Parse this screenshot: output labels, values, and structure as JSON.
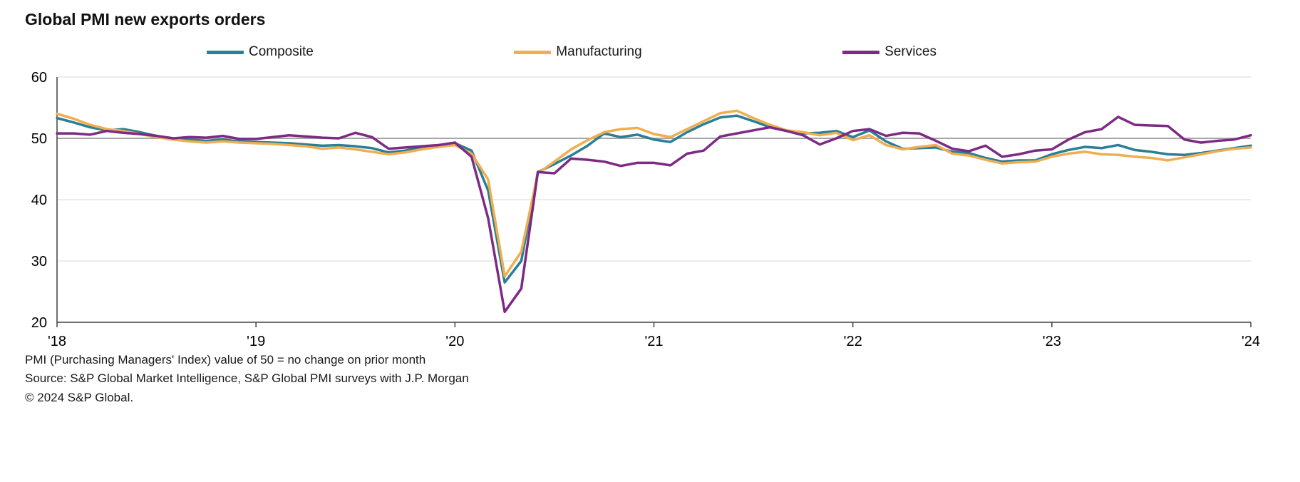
{
  "title": "Global PMI new exports orders",
  "chart_data": {
    "type": "line",
    "title": "Global PMI new exports orders",
    "xlabel": "",
    "ylabel": "",
    "ylim": [
      20,
      60
    ],
    "y_ticks": [
      20,
      30,
      40,
      50,
      60
    ],
    "reference_line": 50,
    "grid": "horizontal",
    "legend_position": "top",
    "x_tick_labels": [
      "'18",
      "'19",
      "'20",
      "'21",
      "'22",
      "'23",
      "'24"
    ],
    "x_tick_positions": [
      0,
      12,
      24,
      36,
      48,
      60,
      72
    ],
    "x_unit": "month",
    "x_range": "Jan 2018 - Jan 2024",
    "series": [
      {
        "name": "Composite",
        "color": "#2a7e95",
        "values": [
          53.3,
          52.6,
          51.8,
          51.3,
          51.5,
          51.0,
          50.4,
          50.0,
          49.8,
          49.6,
          49.8,
          49.5,
          49.4,
          49.3,
          49.2,
          49.0,
          48.8,
          48.9,
          48.7,
          48.4,
          47.7,
          48.0,
          48.6,
          48.8,
          49.2,
          48.0,
          41.5,
          26.5,
          30.0,
          44.5,
          45.8,
          47.2,
          48.8,
          50.8,
          50.2,
          50.6,
          49.8,
          49.4,
          51.0,
          52.3,
          53.4,
          53.7,
          52.8,
          51.8,
          51.2,
          50.8,
          50.9,
          51.2,
          50.2,
          51.3,
          49.5,
          48.3,
          48.4,
          48.5,
          47.8,
          47.6,
          46.8,
          46.2,
          46.4,
          46.4,
          47.4,
          48.1,
          48.6,
          48.4,
          48.9,
          48.1,
          47.8,
          47.4,
          47.3,
          47.6,
          48.0,
          48.4,
          48.8
        ]
      },
      {
        "name": "Manufacturing",
        "color": "#efae4f",
        "values": [
          54.0,
          53.2,
          52.2,
          51.5,
          51.2,
          50.7,
          50.2,
          49.8,
          49.5,
          49.3,
          49.5,
          49.3,
          49.2,
          49.1,
          48.9,
          48.7,
          48.3,
          48.5,
          48.2,
          47.8,
          47.4,
          47.7,
          48.2,
          48.6,
          48.9,
          47.5,
          43.3,
          27.5,
          31.5,
          44.3,
          46.2,
          48.2,
          49.7,
          51.0,
          51.5,
          51.7,
          50.7,
          50.2,
          51.5,
          52.8,
          54.1,
          54.5,
          53.3,
          52.2,
          51.3,
          51.0,
          50.5,
          50.9,
          49.7,
          50.5,
          48.9,
          48.2,
          48.6,
          48.9,
          47.5,
          47.2,
          46.5,
          45.9,
          46.1,
          46.2,
          47.0,
          47.5,
          47.8,
          47.4,
          47.3,
          47.0,
          46.8,
          46.4,
          46.9,
          47.4,
          47.9,
          48.3,
          48.5
        ]
      },
      {
        "name": "Services",
        "color": "#7d2a84",
        "values": [
          50.8,
          50.8,
          50.6,
          51.2,
          50.9,
          50.7,
          50.4,
          50.0,
          50.2,
          50.1,
          50.4,
          49.9,
          49.9,
          50.2,
          50.5,
          50.3,
          50.1,
          50.0,
          50.9,
          50.2,
          48.3,
          48.5,
          48.7,
          48.9,
          49.3,
          47.0,
          37.0,
          21.7,
          25.5,
          44.5,
          44.3,
          46.7,
          46.5,
          46.2,
          45.5,
          46.0,
          46.0,
          45.6,
          47.5,
          48.0,
          50.3,
          50.8,
          51.3,
          51.8,
          51.2,
          50.5,
          49.0,
          50.0,
          51.2,
          51.5,
          50.4,
          50.9,
          50.8,
          49.6,
          48.3,
          47.9,
          48.8,
          47.0,
          47.4,
          48.0,
          48.2,
          49.8,
          51.0,
          51.5,
          53.5,
          52.2,
          52.1,
          52.0,
          49.8,
          49.3,
          49.6,
          49.8,
          50.5
        ]
      }
    ],
    "footnotes": [
      "PMI (Purchasing Managers' Index) value of 50 = no change on prior month",
      "Source: S&P Global Market Intelligence, S&P Global PMI surveys with J.P. Morgan",
      "© 2024 S&P Global."
    ]
  }
}
